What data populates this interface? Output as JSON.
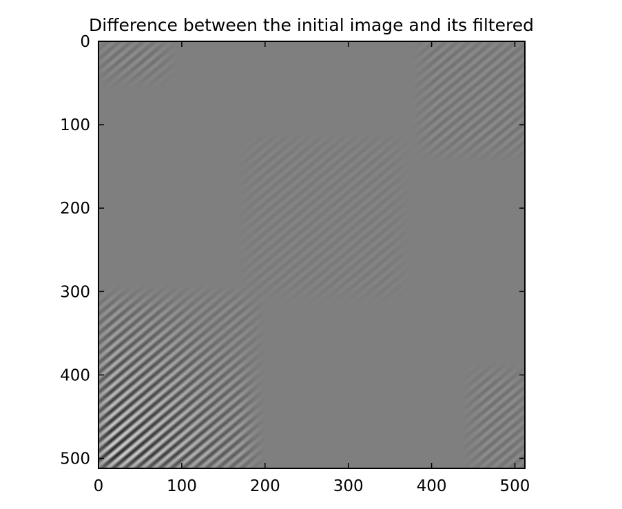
{
  "chart_data": {
    "type": "heatmap",
    "title": "Difference between the initial image and its filtered",
    "xlabel": "",
    "ylabel": "",
    "image_size": [
      512,
      512
    ],
    "xlim": [
      0,
      512
    ],
    "ylim": [
      512,
      0
    ],
    "x_ticks": [
      0,
      100,
      200,
      300,
      400,
      500
    ],
    "y_ticks": [
      0,
      100,
      200,
      300,
      400,
      500
    ],
    "x_tick_labels": [
      "0",
      "100",
      "200",
      "300",
      "400",
      "500"
    ],
    "y_tick_labels": [
      "0",
      "100",
      "200",
      "300",
      "400",
      "500"
    ],
    "colormap": "gray",
    "background_value_color": "#7f7f7f",
    "grid": false,
    "pattern_regions": [
      {
        "name": "strong-diagonal-stripes",
        "x": [
          0,
          185
        ],
        "y": [
          305,
          512
        ],
        "amplitude": 0.75,
        "period": 9,
        "angle_deg": 50
      },
      {
        "name": "faint-top-left-stripes",
        "x": [
          0,
          80
        ],
        "y": [
          0,
          40
        ],
        "amplitude": 0.12,
        "period": 9,
        "angle_deg": 50
      },
      {
        "name": "faint-top-right-stripes",
        "x": [
          390,
          512
        ],
        "y": [
          0,
          130
        ],
        "amplitude": 0.1,
        "period": 9,
        "angle_deg": 50
      },
      {
        "name": "faint-bottom-right-stripes",
        "x": [
          450,
          512
        ],
        "y": [
          400,
          512
        ],
        "amplitude": 0.12,
        "period": 9,
        "angle_deg": 50
      },
      {
        "name": "faint-middle-stripes",
        "x": [
          180,
          360
        ],
        "y": [
          120,
          300
        ],
        "amplitude": 0.05,
        "period": 9,
        "angle_deg": 50
      }
    ]
  }
}
